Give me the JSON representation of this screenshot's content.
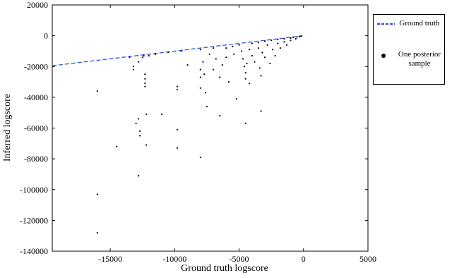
{
  "chart_data": {
    "type": "scatter",
    "xlabel": "Ground truth logscore",
    "ylabel": "Inferred logscore",
    "xlim": [
      -19500,
      5000
    ],
    "ylim": [
      -140000,
      20000
    ],
    "xticks": [
      -15000,
      -10000,
      -5000,
      0,
      5000
    ],
    "yticks": [
      20000,
      0,
      -20000,
      -40000,
      -60000,
      -80000,
      -100000,
      -120000,
      -140000
    ],
    "grid": false,
    "legend": "outside upper right",
    "series": [
      {
        "name": "Ground truth",
        "type": "line",
        "color": "#3355dd",
        "x": [
          -19500,
          0
        ],
        "y": [
          -19500,
          0
        ]
      },
      {
        "name": "One posterior sample",
        "type": "scatter",
        "color": "#000000",
        "x": [
          -16000,
          -16000,
          -16000,
          -14500,
          -13500,
          -13200,
          -13200,
          -13000,
          -12800,
          -12800,
          -12800,
          -12700,
          -12700,
          -12500,
          -12400,
          -12300,
          -12300,
          -12300,
          -12300,
          -12200,
          -12200,
          -12000,
          -11500,
          -11000,
          -10500,
          -9800,
          -9800,
          -9800,
          -9800,
          -9500,
          -9000,
          -8000,
          -8000,
          -8000,
          -8000,
          -8000,
          -7800,
          -7700,
          -7600,
          -7500,
          -7300,
          -7000,
          -7000,
          -6800,
          -6500,
          -6500,
          -6300,
          -6000,
          -6000,
          -5800,
          -5500,
          -5400,
          -5200,
          -5000,
          -4800,
          -4700,
          -4600,
          -4500,
          -4500,
          -4500,
          -4400,
          -4200,
          -4200,
          -4000,
          -4000,
          -3800,
          -3500,
          -3500,
          -3400,
          -3300,
          -3300,
          -3200,
          -3000,
          -3000,
          -2800,
          -2600,
          -2500,
          -2400,
          -2200,
          -2000,
          -2000,
          -1800,
          -1500,
          -1500,
          -1300,
          -1000,
          -1000,
          -800,
          -600,
          -500,
          -300,
          -200
        ],
        "y": [
          -36000,
          -103000,
          -128000,
          -72000,
          -14000,
          -20000,
          -22000,
          -57000,
          -91000,
          -54000,
          -17000,
          -65000,
          -62000,
          -14000,
          -13000,
          -25000,
          -28000,
          -31000,
          -33000,
          -51000,
          -71000,
          -13000,
          -12000,
          -51000,
          -10800,
          -33000,
          -35000,
          -61000,
          -73000,
          -10000,
          -19000,
          -9000,
          -22000,
          -27000,
          -34000,
          -79000,
          -17000,
          -25000,
          -37000,
          -46000,
          -12000,
          -8000,
          -22000,
          -15000,
          -27000,
          -52000,
          -19000,
          -8000,
          -14000,
          -30000,
          -7000,
          -12000,
          -41000,
          -6000,
          -10000,
          -15000,
          -20000,
          -24000,
          -28000,
          -57000,
          -18000,
          -9000,
          -31000,
          -5000,
          -13000,
          -17000,
          -4500,
          -8000,
          -21000,
          -26000,
          -49000,
          -11000,
          -3500,
          -14000,
          -6000,
          -18000,
          -3000,
          -9000,
          -13000,
          -2500,
          -5000,
          -8000,
          -2000,
          -4000,
          -6000,
          -1500,
          -3000,
          -1000,
          -2000,
          -800,
          -500,
          -300
        ]
      }
    ]
  }
}
